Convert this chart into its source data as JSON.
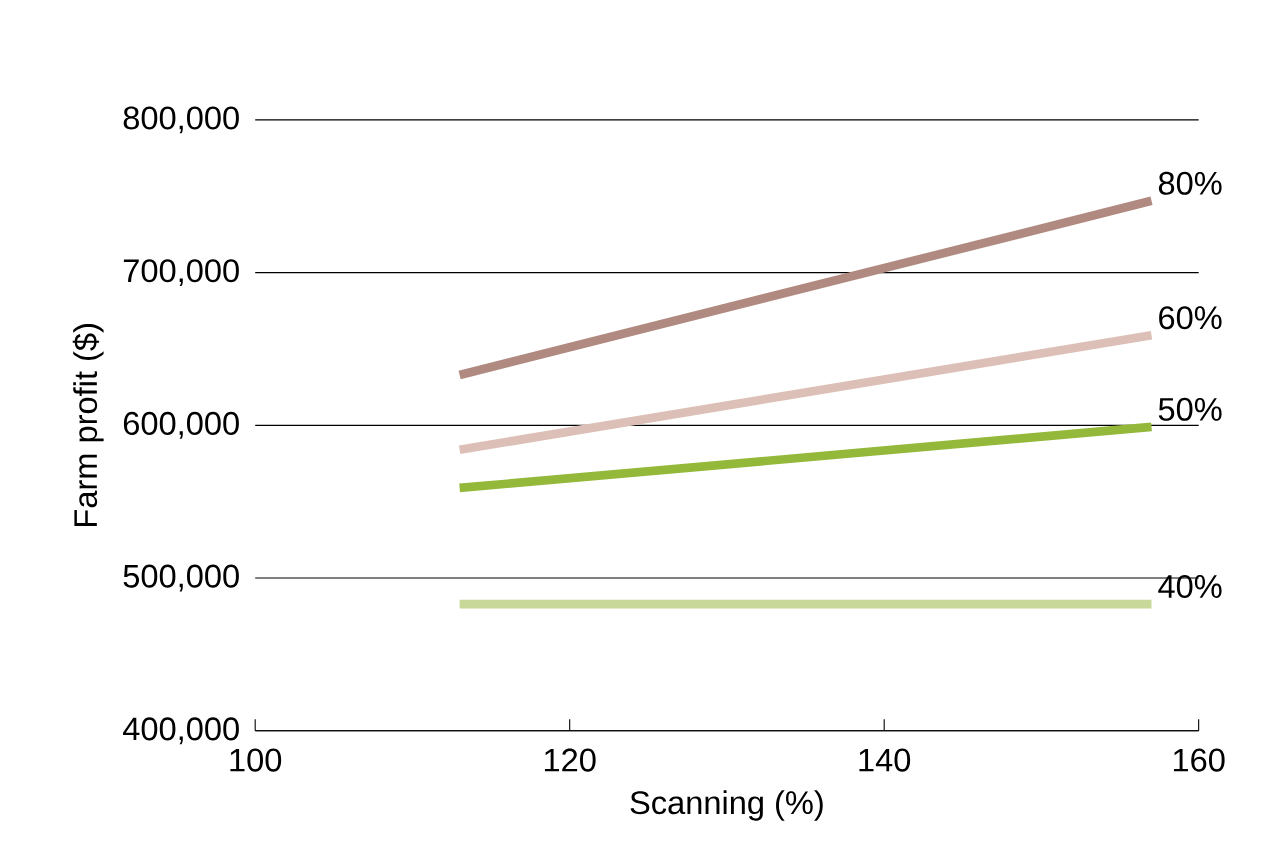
{
  "chart_data": {
    "type": "line",
    "xlabel": "Scanning (%)",
    "ylabel": "Farm profit ($)",
    "xlim": [
      100,
      160
    ],
    "xticks": [
      100,
      120,
      140,
      160
    ],
    "ylim": [
      400000,
      800000
    ],
    "yticks": [
      {
        "value": 400000,
        "label": "400,000"
      },
      {
        "value": 500000,
        "label": "500,000"
      },
      {
        "value": 600000,
        "label": "600,000"
      },
      {
        "value": 700000,
        "label": "700,000"
      },
      {
        "value": 800000,
        "label": "800,000"
      }
    ],
    "grid": "y",
    "legend": false,
    "x": [
      113,
      157
    ],
    "series": [
      {
        "name": "80%",
        "color": "#b08a80",
        "values": [
          633000,
          747000
        ]
      },
      {
        "name": "60%",
        "color": "#dcc0b8",
        "values": [
          584000,
          659000
        ]
      },
      {
        "name": "50%",
        "color": "#94b93a",
        "values": [
          559000,
          599000
        ]
      },
      {
        "name": "40%",
        "color": "#c8d898",
        "values": [
          483000,
          483000
        ]
      }
    ]
  }
}
